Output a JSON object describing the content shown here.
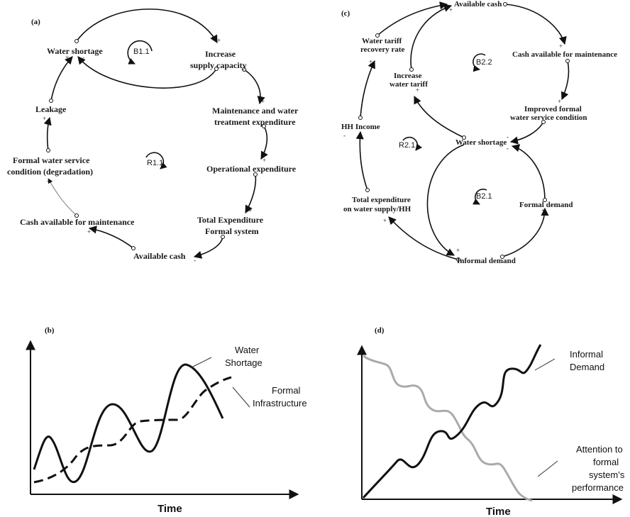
{
  "panel_a": {
    "tag": "(a)",
    "nodes": {
      "water_shortage": "Water shortage",
      "increase_supply_1": "Increase",
      "increase_supply_2": "supply capacity",
      "maintenance_1": "Maintenance and water",
      "maintenance_2": "treatment expenditure",
      "operational": "Operational expenditure",
      "total_exp_1": "Total Expenditure",
      "total_exp_2": "Formal system",
      "available_cash": "Available cash",
      "cash_maint": "Cash available for maintenance",
      "formal_cond_1": "Formal water service",
      "formal_cond_2": "condition (degradation)",
      "leakage": "Leakage"
    },
    "loops": {
      "b": "B1.1",
      "r": "R1.1"
    },
    "signs": {
      "plus": "+",
      "minus": "-"
    }
  },
  "panel_c": {
    "tag": "(c)",
    "nodes": {
      "available_cash": "Available cash",
      "cash_maint": "Cash available for maintenance",
      "improved_1": "Improved formal",
      "improved_2": "water service condition",
      "water_shortage": "Water shortage",
      "formal_demand": "Formal demand",
      "informal_demand": "Informal demand",
      "total_exp_1": "Total expenditure",
      "total_exp_2": "on water supply/HH",
      "hh_income": "HH Income",
      "tariff_rate_1": "Water tariff",
      "tariff_rate_2": "recovery rate",
      "increase_tariff_1": "Increase",
      "increase_tariff_2": "water tariff"
    },
    "loops": {
      "b22": "B2.2",
      "r21": "R2.1",
      "b21": "B2.1"
    }
  },
  "panel_b": {
    "tag": "(b)",
    "legend_water_1": "Water",
    "legend_water_2": "Shortage",
    "legend_formal_1": "Formal",
    "legend_formal_2": "Infrastructure",
    "x_title": "Time"
  },
  "panel_d": {
    "tag": "(d)",
    "legend_informal_1": "Informal",
    "legend_informal_2": "Demand",
    "legend_att_1": "Attention to",
    "legend_att_2": "formal",
    "legend_att_3": "system’s",
    "legend_att_4": "performance",
    "x_title": "Time"
  },
  "colors": {
    "ink": "#111111",
    "gray_curve": "#aaaaaa"
  }
}
